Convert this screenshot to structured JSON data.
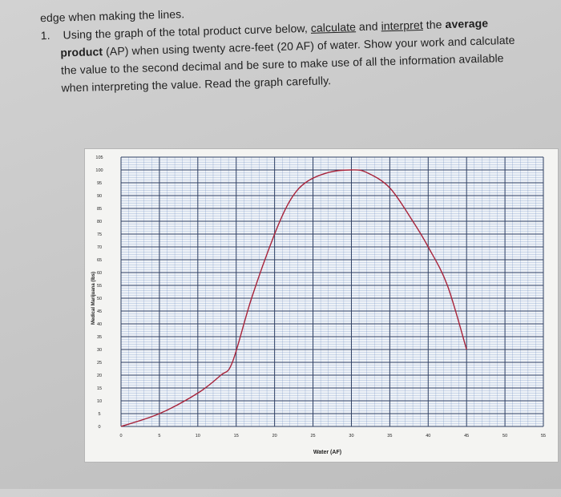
{
  "question": {
    "line0": "edge when making the lines.",
    "number": "1.",
    "line1_a": "Using the graph of the total product curve below, ",
    "line1_b": "calculate",
    "line1_c": " and ",
    "line1_d": "interpret",
    "line1_e": " the ",
    "line1_f": "average",
    "line2_a": "product",
    "line2_b": " (AP) when using twenty acre-feet (20 AF) of water. Show your work and calculate",
    "line3": "the value to the second decimal and be sure to make use of all the information available",
    "line4": "when interpreting the value. Read the graph carefully."
  },
  "chart_data": {
    "type": "line",
    "title": "",
    "xlabel": "Water (AF)",
    "ylabel": "Medical Marijuana (lbs)",
    "xlim": [
      0,
      55
    ],
    "ylim": [
      0,
      105
    ],
    "x_ticks": [
      0,
      5,
      10,
      15,
      20,
      25,
      30,
      35,
      40,
      45,
      50,
      55
    ],
    "y_ticks": [
      0,
      5,
      10,
      15,
      20,
      25,
      30,
      35,
      40,
      45,
      50,
      55,
      60,
      65,
      70,
      75,
      80,
      85,
      90,
      95,
      100,
      105
    ],
    "grid": true,
    "series": [
      {
        "color": "#a8233a",
        "x": [
          0,
          5,
          10,
          13,
          14.5,
          17,
          20,
          22,
          24,
          27,
          30,
          32,
          35,
          38,
          40,
          42.5,
          45
        ],
        "y": [
          0,
          5,
          13,
          20,
          25,
          50,
          75,
          88,
          95,
          99,
          100,
          99,
          93,
          80,
          70,
          55,
          30
        ]
      }
    ]
  }
}
